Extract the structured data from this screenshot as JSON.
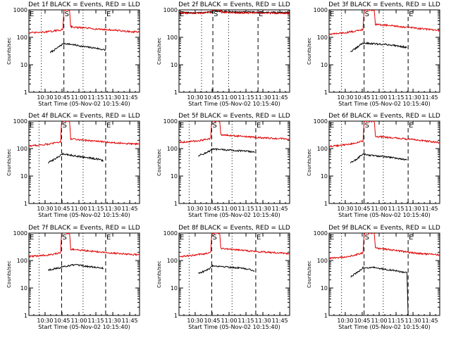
{
  "figure": {
    "common": {
      "xlabel": "Start Time (05-Nov-02 10:15:40)",
      "ylabel": "Counts/sec",
      "y_scale": "log",
      "ylim": [
        1,
        1000
      ],
      "y_tick_labels": [
        "1",
        "10",
        "100",
        "1000"
      ],
      "x_tick_labels": [
        "10:30",
        "10:45",
        "11:00",
        "11:15",
        "11:30",
        "11:45"
      ],
      "xlim_minutes_after_10_15_40": [
        0,
        98
      ],
      "marker_labels": {
        "start": "S",
        "end": "E"
      },
      "colors": {
        "events": "#000000",
        "lld": "#e00000",
        "axes": "#000000",
        "background": "#ffffff"
      }
    }
  },
  "chart_data": [
    {
      "type": "line",
      "title": "Det 1f BLACK = Events, RED = LLD",
      "series": [
        {
          "name": "Events",
          "points": [
            [
              19,
              28
            ],
            [
              24,
              38
            ],
            [
              28,
              50
            ],
            [
              31,
              60
            ],
            [
              38,
              55
            ],
            [
              50,
              45
            ],
            [
              60,
              40
            ],
            [
              68,
              34
            ]
          ]
        },
        {
          "name": "LLD",
          "points": [
            [
              0,
              145
            ],
            [
              10,
              150
            ],
            [
              20,
              165
            ],
            [
              30,
              190
            ],
            [
              31,
              1000
            ],
            [
              36,
              1000
            ],
            [
              37,
              250
            ],
            [
              40,
              230
            ],
            [
              50,
              220
            ],
            [
              60,
              200
            ],
            [
              70,
              190
            ],
            [
              80,
              175
            ],
            [
              90,
              160
            ],
            [
              98,
              155
            ]
          ]
        }
      ],
      "markers": {
        "start_min": 31,
        "end_min": 68,
        "dotted_min": [
          11,
          48
        ]
      }
    },
    {
      "type": "line",
      "title": "Det 2f BLACK = Events, RED = LLD",
      "series": [
        {
          "name": "Events",
          "points": [
            [
              0,
              780
            ],
            [
              20,
              790
            ],
            [
              29,
              850
            ],
            [
              31,
              900
            ],
            [
              37,
              900
            ],
            [
              40,
              860
            ],
            [
              60,
              820
            ],
            [
              80,
              810
            ],
            [
              98,
              800
            ]
          ]
        },
        {
          "name": "LLD",
          "points": [
            [
              0,
              760
            ],
            [
              20,
              770
            ],
            [
              28,
              800
            ],
            [
              30,
              1000
            ],
            [
              36,
              1000
            ],
            [
              38,
              820
            ],
            [
              50,
              780
            ],
            [
              70,
              770
            ],
            [
              90,
              760
            ],
            [
              98,
              750
            ]
          ]
        }
      ],
      "markers": {
        "start_min": 30,
        "end_min": 70,
        "dotted_min": [
          20,
          44
        ]
      }
    },
    {
      "type": "line",
      "title": "Det 3f BLACK = Events, RED = LLD",
      "series": [
        {
          "name": "Events",
          "points": [
            [
              19,
              30
            ],
            [
              24,
              40
            ],
            [
              28,
              55
            ],
            [
              30,
              62
            ],
            [
              40,
              58
            ],
            [
              50,
              55
            ],
            [
              60,
              50
            ],
            [
              69,
              42
            ]
          ]
        },
        {
          "name": "LLD",
          "points": [
            [
              0,
              130
            ],
            [
              10,
              140
            ],
            [
              20,
              160
            ],
            [
              30,
              190
            ],
            [
              31,
              1000
            ],
            [
              40,
              1000
            ],
            [
              41,
              300
            ],
            [
              50,
              280
            ],
            [
              60,
              250
            ],
            [
              70,
              230
            ],
            [
              80,
              210
            ],
            [
              90,
              190
            ],
            [
              98,
              175
            ]
          ]
        }
      ],
      "markers": {
        "start_min": 31,
        "end_min": 70,
        "dotted_min": [
          11,
          48
        ]
      }
    },
    {
      "type": "line",
      "title": "Det 4f BLACK = Events, RED = LLD",
      "series": [
        {
          "name": "Events",
          "points": [
            [
              17,
              30
            ],
            [
              22,
              40
            ],
            [
              28,
              55
            ],
            [
              30,
              65
            ],
            [
              40,
              55
            ],
            [
              50,
              48
            ],
            [
              60,
              42
            ],
            [
              66,
              36
            ]
          ]
        },
        {
          "name": "LLD",
          "points": [
            [
              0,
              125
            ],
            [
              10,
              135
            ],
            [
              20,
              150
            ],
            [
              28,
              180
            ],
            [
              29,
              1000
            ],
            [
              36,
              1000
            ],
            [
              37,
              230
            ],
            [
              50,
              200
            ],
            [
              60,
              185
            ],
            [
              70,
              170
            ],
            [
              80,
              160
            ],
            [
              90,
              150
            ],
            [
              98,
              145
            ]
          ]
        }
      ],
      "markers": {
        "start_min": 29,
        "end_min": 68,
        "dotted_min": [
          9,
          48
        ]
      }
    },
    {
      "type": "line",
      "title": "Det 5f BLACK = Events, RED = LLD",
      "series": [
        {
          "name": "Events",
          "points": [
            [
              17,
              55
            ],
            [
              22,
              65
            ],
            [
              27,
              80
            ],
            [
              29,
              95
            ],
            [
              40,
              90
            ],
            [
              50,
              85
            ],
            [
              60,
              80
            ],
            [
              67,
              75
            ]
          ]
        },
        {
          "name": "LLD",
          "points": [
            [
              0,
              170
            ],
            [
              10,
              180
            ],
            [
              20,
              200
            ],
            [
              28,
              230
            ],
            [
              29,
              1000
            ],
            [
              36,
              1000
            ],
            [
              37,
              320
            ],
            [
              50,
              290
            ],
            [
              60,
              270
            ],
            [
              70,
              250
            ],
            [
              80,
              240
            ],
            [
              90,
              230
            ],
            [
              98,
              220
            ]
          ]
        }
      ],
      "markers": {
        "start_min": 29,
        "end_min": 68,
        "dotted_min": [
          9,
          47
        ]
      }
    },
    {
      "type": "line",
      "title": "Det 6f BLACK = Events, RED = LLD",
      "series": [
        {
          "name": "Events",
          "points": [
            [
              19,
              30
            ],
            [
              24,
              40
            ],
            [
              28,
              55
            ],
            [
              30,
              62
            ],
            [
              40,
              55
            ],
            [
              50,
              50
            ],
            [
              60,
              45
            ],
            [
              69,
              38
            ]
          ]
        },
        {
          "name": "LLD",
          "points": [
            [
              0,
              120
            ],
            [
              10,
              130
            ],
            [
              20,
              150
            ],
            [
              30,
              185
            ],
            [
              31,
              1000
            ],
            [
              40,
              1000
            ],
            [
              41,
              280
            ],
            [
              50,
              260
            ],
            [
              60,
              240
            ],
            [
              70,
              220
            ],
            [
              80,
              200
            ],
            [
              90,
              180
            ],
            [
              98,
              165
            ]
          ]
        }
      ],
      "markers": {
        "start_min": 31,
        "end_min": 70,
        "dotted_min": [
          11,
          48
        ]
      }
    },
    {
      "type": "line",
      "title": "Det 7f BLACK = Events, RED = LLD",
      "series": [
        {
          "name": "Events",
          "points": [
            [
              17,
              45
            ],
            [
              22,
              50
            ],
            [
              28,
              55
            ],
            [
              30,
              60
            ],
            [
              40,
              70
            ],
            [
              50,
              62
            ],
            [
              60,
              56
            ],
            [
              66,
              52
            ]
          ]
        },
        {
          "name": "LLD",
          "points": [
            [
              0,
              140
            ],
            [
              10,
              150
            ],
            [
              20,
              165
            ],
            [
              28,
              190
            ],
            [
              29,
              1000
            ],
            [
              36,
              1000
            ],
            [
              37,
              260
            ],
            [
              50,
              230
            ],
            [
              60,
              210
            ],
            [
              70,
              190
            ],
            [
              80,
              180
            ],
            [
              90,
              170
            ],
            [
              98,
              160
            ]
          ]
        }
      ],
      "markers": {
        "start_min": 29,
        "end_min": 68,
        "dotted_min": [
          9,
          48
        ]
      }
    },
    {
      "type": "line",
      "title": "Det 8f BLACK = Events, RED = LLD",
      "series": [
        {
          "name": "Events",
          "points": [
            [
              17,
              35
            ],
            [
              22,
              40
            ],
            [
              27,
              50
            ],
            [
              29,
              65
            ],
            [
              40,
              60
            ],
            [
              50,
              55
            ],
            [
              60,
              50
            ],
            [
              67,
              42
            ]
          ]
        },
        {
          "name": "LLD",
          "points": [
            [
              0,
              140
            ],
            [
              10,
              150
            ],
            [
              20,
              170
            ],
            [
              28,
              200
            ],
            [
              29,
              1000
            ],
            [
              36,
              1000
            ],
            [
              37,
              280
            ],
            [
              50,
              250
            ],
            [
              60,
              230
            ],
            [
              70,
              210
            ],
            [
              80,
              200
            ],
            [
              90,
              190
            ],
            [
              98,
              175
            ]
          ]
        }
      ],
      "markers": {
        "start_min": 29,
        "end_min": 68,
        "dotted_min": [
          9,
          47
        ]
      }
    },
    {
      "type": "line",
      "title": "Det 9f BLACK = Events, RED = LLD",
      "series": [
        {
          "name": "Events",
          "points": [
            [
              19,
              25
            ],
            [
              24,
              35
            ],
            [
              28,
              45
            ],
            [
              30,
              55
            ],
            [
              40,
              55
            ],
            [
              50,
              48
            ],
            [
              60,
              42
            ],
            [
              69,
              35
            ],
            [
              70,
              1
            ]
          ]
        },
        {
          "name": "LLD",
          "points": [
            [
              0,
              120
            ],
            [
              10,
              130
            ],
            [
              20,
              150
            ],
            [
              30,
              190
            ],
            [
              31,
              1000
            ],
            [
              40,
              1000
            ],
            [
              41,
              280
            ],
            [
              50,
              260
            ],
            [
              60,
              230
            ],
            [
              70,
              200
            ],
            [
              80,
              180
            ],
            [
              90,
              170
            ],
            [
              98,
              160
            ]
          ]
        }
      ],
      "markers": {
        "start_min": 31,
        "end_min": 70,
        "dotted_min": [
          11,
          48
        ]
      }
    }
  ]
}
